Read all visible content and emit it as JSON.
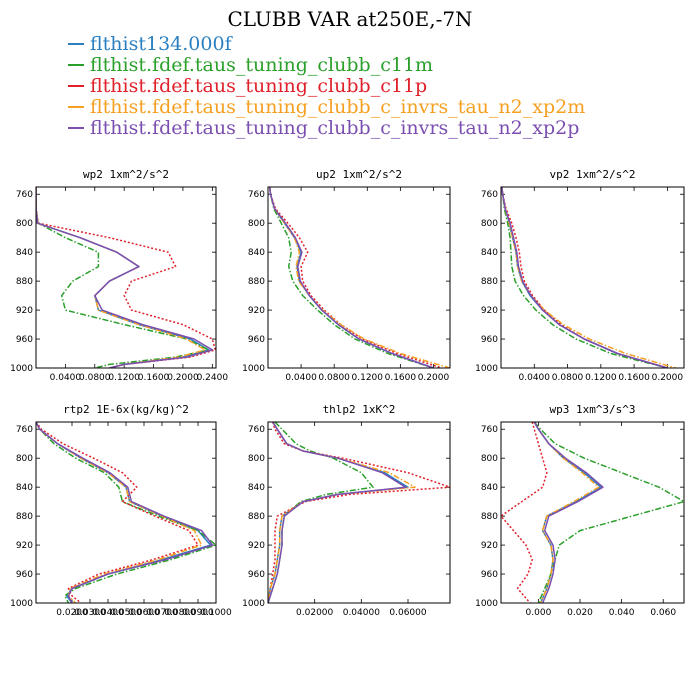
{
  "title": "CLUBB VAR at250E,-7N",
  "colors": {
    "blue": "#2a7fc0",
    "green": "#2aa02a",
    "red": "#e0202a",
    "orange": "#f5a020",
    "purple": "#7a4fb0"
  },
  "legend": [
    {
      "label": "flthist134.000f",
      "color": "#2a7fc0"
    },
    {
      "label": "flthist.fdef.taus_tuning_clubb_c11m",
      "color": "#2aa02a"
    },
    {
      "label": "flthist.fdef.taus_tuning_clubb_c11p",
      "color": "#e0202a"
    },
    {
      "label": "flthist.fdef.taus_tuning_clubb_c_invrs_tau_n2_xp2m",
      "color": "#f5a020"
    },
    {
      "label": "flthist.fdef.taus_tuning_clubb_c_invrs_tau_n2_xp2p",
      "color": "#7a4fb0"
    }
  ],
  "chart_data": [
    {
      "type": "line",
      "title": "wp2  1xm^2/s^2",
      "xlim": [
        0,
        0.245
      ],
      "ylim": [
        1000,
        750
      ],
      "xticks": [
        0.04,
        0.08,
        0.12,
        0.16,
        0.2,
        0.24
      ],
      "xtick_labels": [
        "0.0400",
        "0.0800",
        "0.1200",
        "0.1600",
        "0.2000",
        "0.2400"
      ],
      "yticks": [
        760,
        800,
        840,
        880,
        920,
        960,
        1000
      ],
      "y": [
        750,
        760,
        780,
        800,
        820,
        840,
        860,
        880,
        900,
        920,
        940,
        960,
        975,
        985,
        995,
        1000
      ],
      "series": [
        {
          "color": "blue",
          "dash": "solid",
          "x": [
            0.0,
            0.0,
            0.0,
            0.002,
            0.06,
            0.11,
            0.14,
            0.1,
            0.08,
            0.085,
            0.14,
            0.21,
            0.235,
            0.2,
            0.12,
            0.1
          ]
        },
        {
          "color": "green",
          "dash": "dashdot",
          "x": [
            0.0,
            0.0,
            0.0,
            0.003,
            0.04,
            0.085,
            0.085,
            0.05,
            0.035,
            0.04,
            0.12,
            0.205,
            0.235,
            0.19,
            0.1,
            0.08
          ]
        },
        {
          "color": "red",
          "dash": "dotted",
          "x": [
            0.0,
            0.0,
            0.0,
            0.003,
            0.1,
            0.18,
            0.19,
            0.13,
            0.12,
            0.13,
            0.2,
            0.24,
            0.244,
            0.21,
            0.12,
            0.1
          ]
        },
        {
          "color": "orange",
          "dash": "dashdot",
          "x": [
            0.0,
            0.0,
            0.0,
            0.002,
            0.06,
            0.11,
            0.14,
            0.1,
            0.08,
            0.085,
            0.14,
            0.205,
            0.23,
            0.195,
            0.12,
            0.1
          ]
        },
        {
          "color": "purple",
          "dash": "solid",
          "x": [
            0.0,
            0.0,
            0.0,
            0.002,
            0.06,
            0.11,
            0.14,
            0.1,
            0.08,
            0.09,
            0.145,
            0.215,
            0.24,
            0.205,
            0.12,
            0.1
          ]
        }
      ]
    },
    {
      "type": "line",
      "title": "up2  1xm^2/s^2",
      "xlim": [
        0,
        0.22
      ],
      "ylim": [
        1000,
        750
      ],
      "xticks": [
        0.04,
        0.08,
        0.12,
        0.16,
        0.2
      ],
      "xtick_labels": [
        "0.0400",
        "0.0800",
        "0.1200",
        "0.1600",
        "0.2000"
      ],
      "yticks": [
        760,
        800,
        840,
        880,
        920,
        960,
        1000
      ],
      "y": [
        750,
        760,
        780,
        800,
        820,
        840,
        860,
        880,
        900,
        920,
        940,
        960,
        980,
        1000
      ],
      "series": [
        {
          "color": "blue",
          "dash": "solid",
          "x": [
            0.002,
            0.003,
            0.008,
            0.02,
            0.032,
            0.04,
            0.035,
            0.038,
            0.05,
            0.065,
            0.085,
            0.11,
            0.15,
            0.2
          ]
        },
        {
          "color": "green",
          "dash": "dashdot",
          "x": [
            0.002,
            0.003,
            0.007,
            0.016,
            0.025,
            0.028,
            0.025,
            0.03,
            0.042,
            0.06,
            0.08,
            0.105,
            0.145,
            0.2
          ]
        },
        {
          "color": "red",
          "dash": "dotted",
          "x": [
            0.002,
            0.003,
            0.009,
            0.024,
            0.038,
            0.048,
            0.04,
            0.042,
            0.052,
            0.068,
            0.088,
            0.114,
            0.156,
            0.21
          ]
        },
        {
          "color": "orange",
          "dash": "dashdot",
          "x": [
            0.002,
            0.003,
            0.008,
            0.02,
            0.032,
            0.038,
            0.034,
            0.037,
            0.05,
            0.066,
            0.088,
            0.116,
            0.16,
            0.22
          ]
        },
        {
          "color": "purple",
          "dash": "solid",
          "x": [
            0.002,
            0.003,
            0.008,
            0.021,
            0.033,
            0.041,
            0.036,
            0.039,
            0.05,
            0.065,
            0.085,
            0.11,
            0.15,
            0.2
          ]
        }
      ]
    },
    {
      "type": "line",
      "title": "vp2  1xm^2/s^2",
      "xlim": [
        0,
        0.22
      ],
      "ylim": [
        1000,
        750
      ],
      "xticks": [
        0.04,
        0.08,
        0.12,
        0.16,
        0.2
      ],
      "xtick_labels": [
        "0.0400",
        "0.0800",
        "0.1200",
        "0.1600",
        "0.2000"
      ],
      "yticks": [
        760,
        800,
        840,
        880,
        920,
        960,
        1000
      ],
      "y": [
        750,
        760,
        780,
        800,
        820,
        840,
        860,
        880,
        900,
        920,
        940,
        960,
        980,
        1000
      ],
      "series": [
        {
          "color": "blue",
          "dash": "solid",
          "x": [
            0.001,
            0.002,
            0.005,
            0.01,
            0.014,
            0.018,
            0.02,
            0.025,
            0.035,
            0.05,
            0.07,
            0.1,
            0.14,
            0.2
          ]
        },
        {
          "color": "green",
          "dash": "dashdot",
          "x": [
            0.001,
            0.002,
            0.004,
            0.008,
            0.011,
            0.012,
            0.013,
            0.017,
            0.027,
            0.042,
            0.062,
            0.09,
            0.132,
            0.2
          ]
        },
        {
          "color": "red",
          "dash": "dotted",
          "x": [
            0.001,
            0.002,
            0.006,
            0.013,
            0.018,
            0.022,
            0.024,
            0.028,
            0.038,
            0.052,
            0.072,
            0.1,
            0.14,
            0.2
          ]
        },
        {
          "color": "orange",
          "dash": "dashdot",
          "x": [
            0.001,
            0.002,
            0.005,
            0.01,
            0.014,
            0.018,
            0.02,
            0.025,
            0.036,
            0.052,
            0.075,
            0.106,
            0.15,
            0.21
          ]
        },
        {
          "color": "purple",
          "dash": "solid",
          "x": [
            0.001,
            0.002,
            0.005,
            0.011,
            0.015,
            0.019,
            0.021,
            0.026,
            0.036,
            0.05,
            0.07,
            0.1,
            0.14,
            0.2
          ]
        }
      ]
    },
    {
      "type": "line",
      "title": "rtp2  1E-6x(kg/kg)^2",
      "xlim": [
        0.0,
        0.1
      ],
      "ylim": [
        1000,
        750
      ],
      "xticks": [
        0.02,
        0.03,
        0.04,
        0.05,
        0.06,
        0.07,
        0.08,
        0.09,
        0.1
      ],
      "xtick_labels": [
        "0.0200",
        "0.0300",
        "0.0400",
        "0.0500",
        "0.0600",
        "0.0700",
        "0.0800",
        "0.0900",
        "0.1000"
      ],
      "y": [
        750,
        760,
        780,
        800,
        820,
        840,
        860,
        880,
        900,
        920,
        940,
        960,
        980,
        990,
        1000
      ],
      "yticks": [
        760,
        800,
        840,
        880,
        920,
        960,
        1000
      ],
      "series": [
        {
          "color": "blue",
          "dash": "solid",
          "x": [
            0.0,
            0.002,
            0.012,
            0.025,
            0.04,
            0.05,
            0.052,
            0.07,
            0.09,
            0.097,
            0.07,
            0.04,
            0.02,
            0.017,
            0.02
          ]
        },
        {
          "color": "green",
          "dash": "dashdot",
          "x": [
            0.0,
            0.002,
            0.01,
            0.022,
            0.038,
            0.046,
            0.048,
            0.068,
            0.09,
            0.1,
            0.075,
            0.045,
            0.022,
            0.016,
            0.018
          ]
        },
        {
          "color": "red",
          "dash": "dotted",
          "x": [
            0.0,
            0.003,
            0.015,
            0.032,
            0.048,
            0.056,
            0.048,
            0.066,
            0.085,
            0.09,
            0.065,
            0.035,
            0.018,
            0.02,
            0.025
          ]
        },
        {
          "color": "orange",
          "dash": "dashdot",
          "x": [
            0.0,
            0.002,
            0.012,
            0.025,
            0.04,
            0.05,
            0.052,
            0.07,
            0.088,
            0.092,
            0.068,
            0.038,
            0.019,
            0.018,
            0.022
          ]
        },
        {
          "color": "purple",
          "dash": "solid",
          "x": [
            0.0,
            0.002,
            0.012,
            0.026,
            0.041,
            0.051,
            0.053,
            0.071,
            0.092,
            0.098,
            0.072,
            0.04,
            0.02,
            0.018,
            0.02
          ]
        }
      ]
    },
    {
      "type": "line",
      "title": "thlp2  1xK^2",
      "xlim": [
        0,
        0.078
      ],
      "ylim": [
        1000,
        750
      ],
      "xticks": [
        0.02,
        0.04,
        0.06
      ],
      "xtick_labels": [
        "0.02000",
        "0.04000",
        "0.06000"
      ],
      "yticks": [
        760,
        800,
        840,
        880,
        920,
        960,
        1000
      ],
      "y": [
        750,
        760,
        780,
        790,
        800,
        820,
        840,
        850,
        860,
        880,
        900,
        920,
        940,
        960,
        980,
        1000
      ],
      "series": [
        {
          "color": "blue",
          "dash": "solid",
          "x": [
            0.002,
            0.004,
            0.008,
            0.015,
            0.03,
            0.05,
            0.06,
            0.03,
            0.015,
            0.006,
            0.005,
            0.005,
            0.004,
            0.003,
            0.001,
            0.0
          ]
        },
        {
          "color": "green",
          "dash": "dashdot",
          "x": [
            0.003,
            0.006,
            0.012,
            0.018,
            0.028,
            0.04,
            0.045,
            0.025,
            0.014,
            0.007,
            0.006,
            0.006,
            0.005,
            0.004,
            0.002,
            0.0
          ]
        },
        {
          "color": "red",
          "dash": "dotted",
          "x": [
            0.002,
            0.003,
            0.007,
            0.015,
            0.032,
            0.06,
            0.078,
            0.035,
            0.016,
            0.004,
            0.003,
            0.003,
            0.003,
            0.002,
            0.001,
            0.0
          ]
        },
        {
          "color": "orange",
          "dash": "dashdot",
          "x": [
            0.002,
            0.004,
            0.008,
            0.015,
            0.03,
            0.052,
            0.063,
            0.03,
            0.015,
            0.006,
            0.005,
            0.005,
            0.004,
            0.003,
            0.001,
            0.0
          ]
        },
        {
          "color": "purple",
          "dash": "solid",
          "x": [
            0.002,
            0.004,
            0.008,
            0.015,
            0.03,
            0.049,
            0.059,
            0.03,
            0.015,
            0.007,
            0.006,
            0.006,
            0.005,
            0.004,
            0.002,
            0.0
          ]
        }
      ]
    },
    {
      "type": "line",
      "title": "wp3  1xm^3/s^3",
      "xlim": [
        -0.018,
        0.07
      ],
      "ylim": [
        1000,
        750
      ],
      "xticks": [
        0.0,
        0.02,
        0.04,
        0.06
      ],
      "xtick_labels": [
        "0.000",
        "0.020",
        "0.040",
        "0.060"
      ],
      "yticks": [
        760,
        800,
        840,
        880,
        920,
        960,
        1000
      ],
      "y": [
        750,
        760,
        780,
        800,
        820,
        840,
        860,
        880,
        900,
        920,
        940,
        960,
        980,
        1000
      ],
      "series": [
        {
          "color": "blue",
          "dash": "solid",
          "x": [
            -0.002,
            0.0,
            0.005,
            0.012,
            0.022,
            0.03,
            0.018,
            0.004,
            0.002,
            0.006,
            0.007,
            0.006,
            0.004,
            0.001
          ]
        },
        {
          "color": "green",
          "dash": "dashdot",
          "x": [
            -0.002,
            0.001,
            0.008,
            0.022,
            0.04,
            0.058,
            0.07,
            0.045,
            0.02,
            0.01,
            0.008,
            0.006,
            0.003,
            0.0
          ]
        },
        {
          "color": "red",
          "dash": "dotted",
          "x": [
            -0.003,
            -0.002,
            0.0,
            0.002,
            0.004,
            0.002,
            -0.008,
            -0.018,
            -0.012,
            -0.006,
            -0.003,
            -0.005,
            -0.01,
            -0.004
          ]
        },
        {
          "color": "orange",
          "dash": "dashdot",
          "x": [
            -0.002,
            0.0,
            0.005,
            0.012,
            0.021,
            0.029,
            0.017,
            0.004,
            0.002,
            0.006,
            0.007,
            0.006,
            0.004,
            0.001
          ]
        },
        {
          "color": "purple",
          "dash": "solid",
          "x": [
            -0.002,
            0.0,
            0.005,
            0.013,
            0.023,
            0.031,
            0.019,
            0.005,
            0.003,
            0.007,
            0.008,
            0.007,
            0.005,
            0.002
          ]
        }
      ]
    }
  ]
}
